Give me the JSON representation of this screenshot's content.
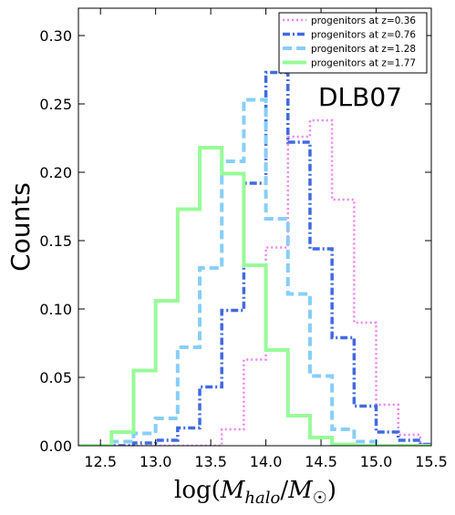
{
  "chart_data": {
    "type": "step-histogram",
    "ylabel": "Counts",
    "xlabel": "log(M_halo/M_☉)",
    "annotation": "DLB07",
    "xlim": [
      12.3,
      15.5
    ],
    "ylim": [
      0.0,
      0.32
    ],
    "xticks": [
      "12.5",
      "13.0",
      "13.5",
      "14.0",
      "14.5",
      "15.0",
      "15.5"
    ],
    "yticks": [
      "0.00",
      "0.05",
      "0.10",
      "0.15",
      "0.20",
      "0.25",
      "0.30"
    ],
    "legend_position": "top-right",
    "bin_edges": [
      12.0,
      12.2,
      12.4,
      12.6,
      12.8,
      13.0,
      13.2,
      13.4,
      13.6,
      13.8,
      14.0,
      14.2,
      14.4,
      14.6,
      14.8,
      15.0,
      15.2,
      15.4,
      15.6
    ],
    "series": [
      {
        "name": "progenitors at z=0.36",
        "color": "#ee82ee",
        "style": "dotted",
        "values": [
          0,
          0,
          0,
          0,
          0,
          0,
          0,
          0,
          0.012,
          0.063,
          0.145,
          0.226,
          0.238,
          0.18,
          0.09,
          0.03,
          0.008,
          0.001
        ]
      },
      {
        "name": "progenitors at z=0.76",
        "color": "#4169e1",
        "style": "dashdot",
        "values": [
          0,
          0,
          0,
          0,
          0.002,
          0.004,
          0.013,
          0.043,
          0.099,
          0.192,
          0.273,
          0.222,
          0.144,
          0.079,
          0.029,
          0.01,
          0.004,
          0.001
        ]
      },
      {
        "name": "progenitors at z=1.28",
        "color": "#87cefa",
        "style": "dashed",
        "values": [
          0,
          0,
          0,
          0.003,
          0.009,
          0.02,
          0.072,
          0.13,
          0.208,
          0.253,
          0.166,
          0.111,
          0.051,
          0.012,
          0.003,
          0,
          0,
          0
        ]
      },
      {
        "name": "progenitors at z=1.77",
        "color": "#98fb98",
        "style": "solid",
        "values": [
          0,
          0,
          0,
          0.01,
          0.055,
          0.106,
          0.173,
          0.218,
          0.199,
          0.132,
          0.07,
          0.022,
          0.006,
          0.001,
          0,
          0,
          0,
          0
        ]
      }
    ]
  }
}
